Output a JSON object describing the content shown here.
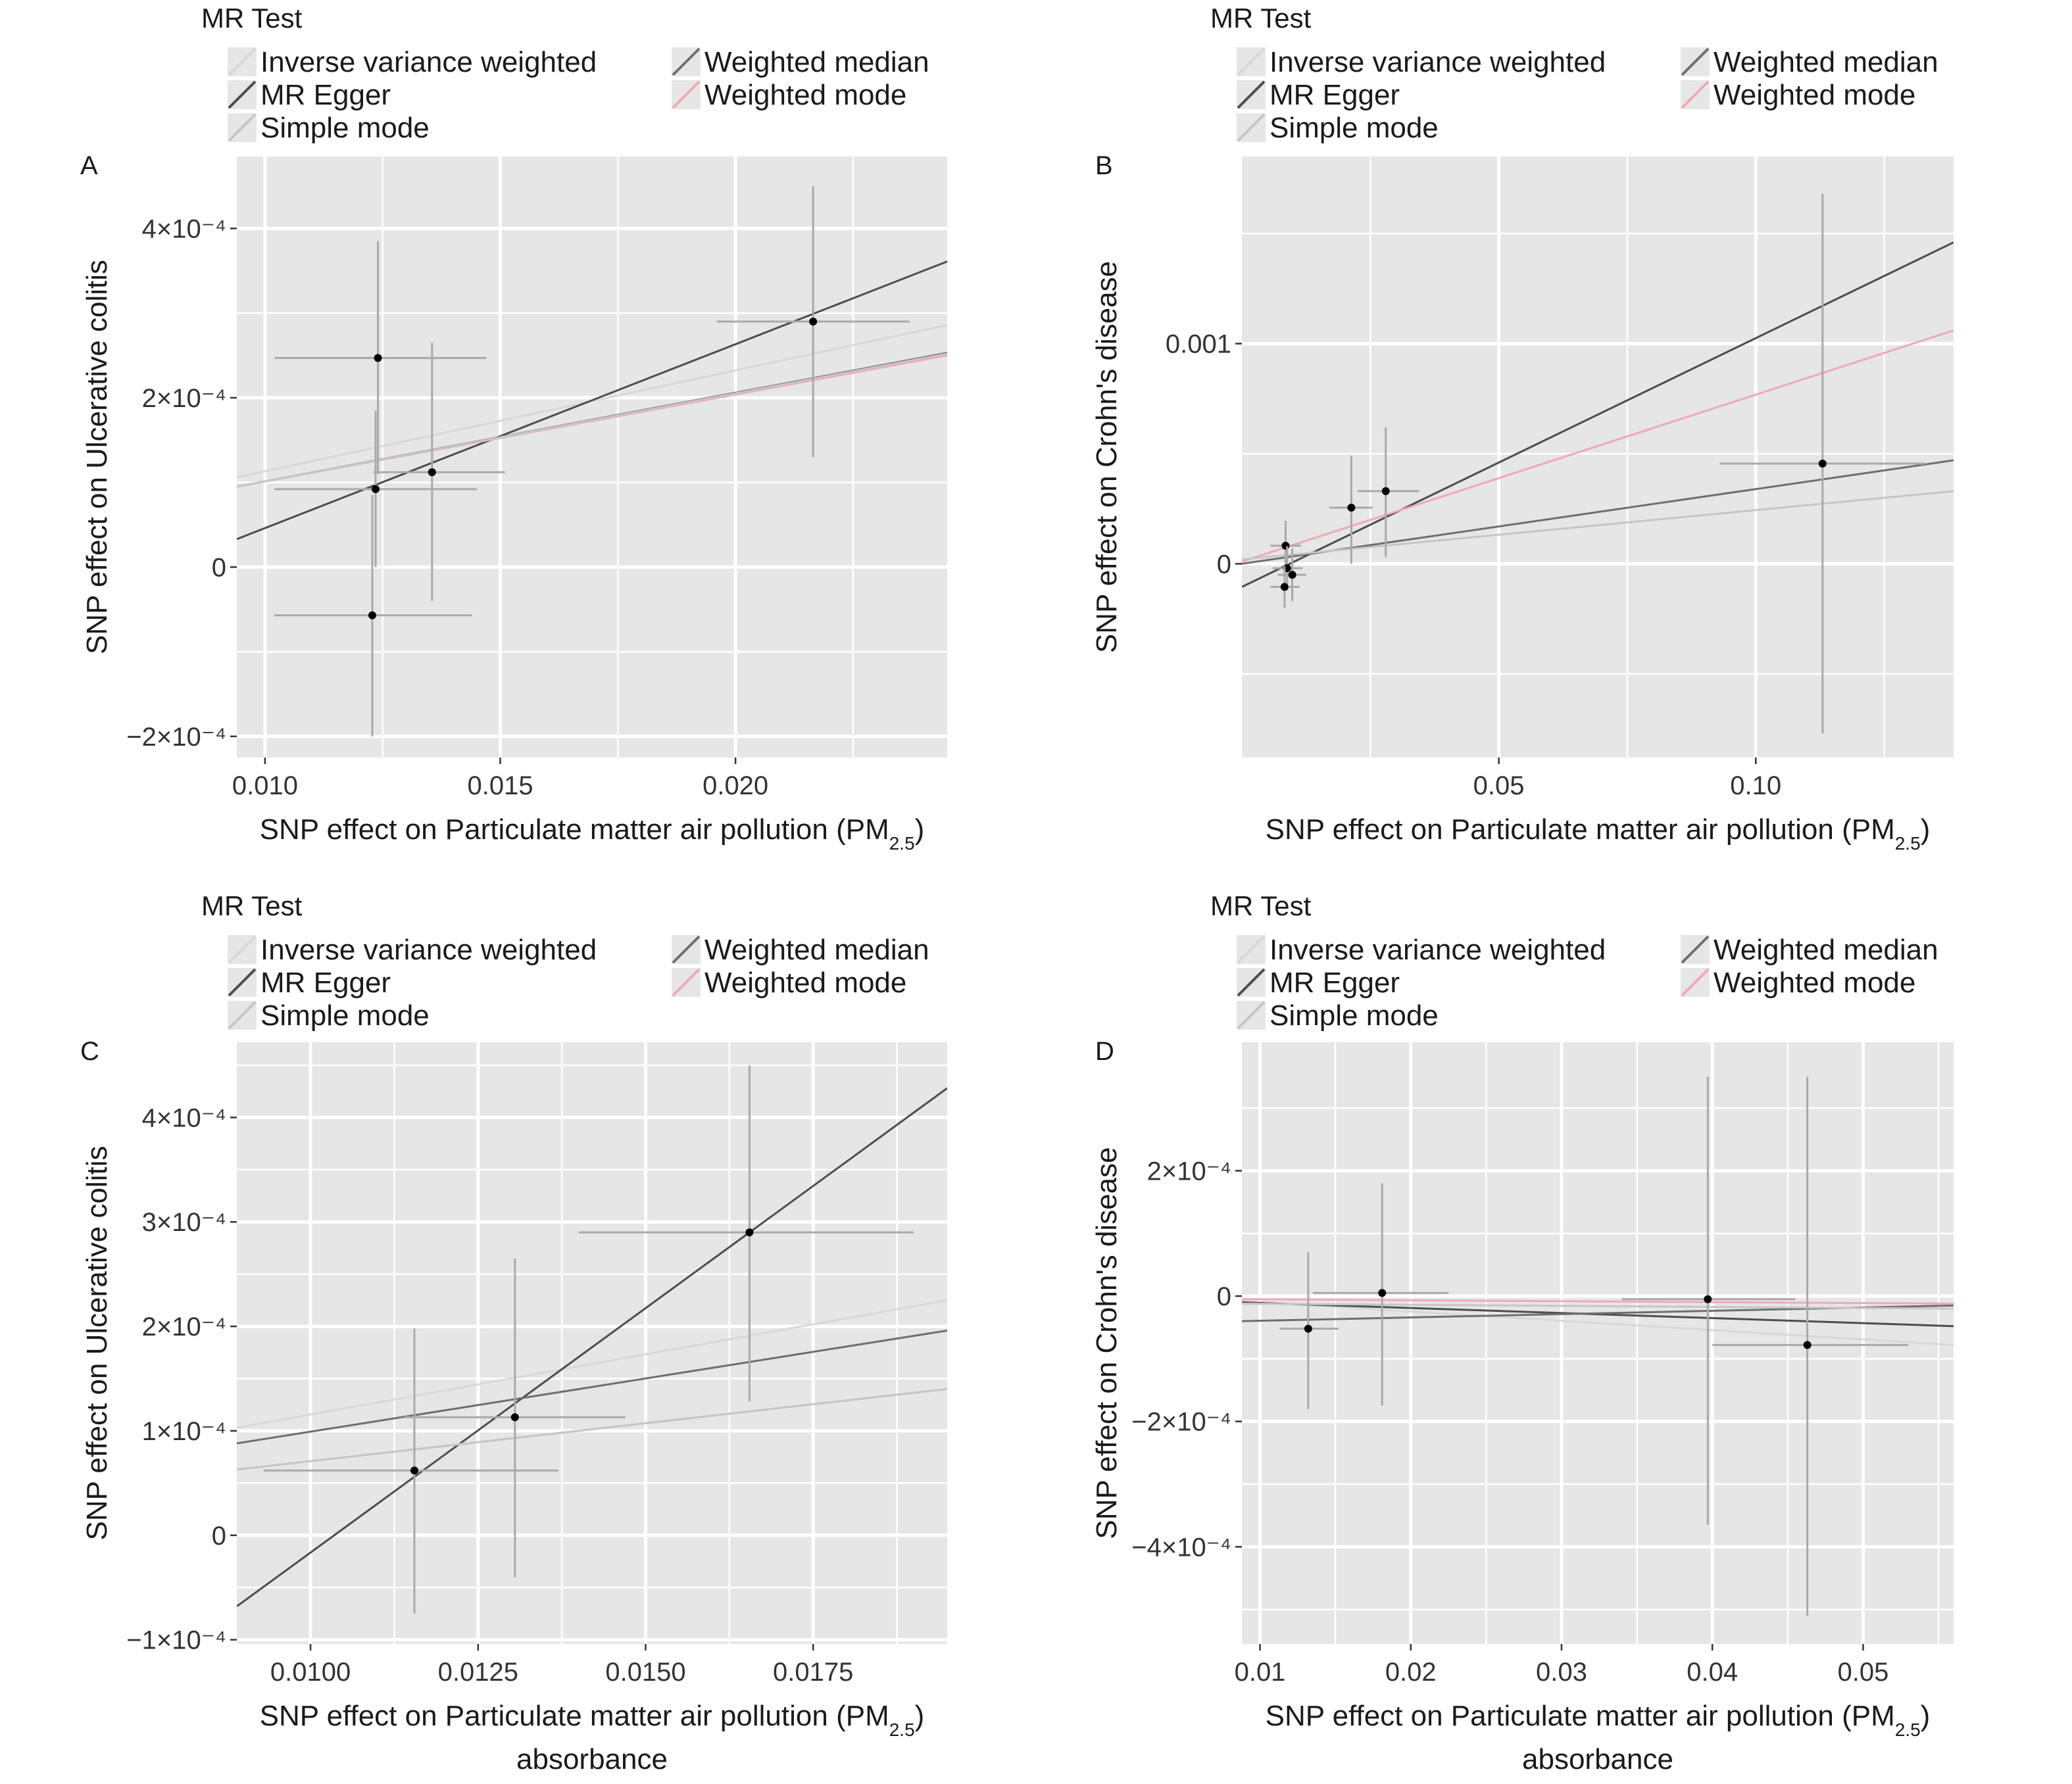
{
  "legend": {
    "title": "MR Test",
    "methods": [
      {
        "key": "ivw",
        "label": "Inverse variance weighted",
        "color": "#d8d8d8"
      },
      {
        "key": "wmed",
        "label": "Weighted median",
        "color": "#6e6e6e"
      },
      {
        "key": "egger",
        "label": "MR Egger",
        "color": "#4d4d4d"
      },
      {
        "key": "wmode",
        "label": "Weighted mode",
        "color": "#f2a8b6"
      },
      {
        "key": "smode",
        "label": "Simple mode",
        "color": "#c6c6c6"
      }
    ]
  },
  "chart_data": [
    {
      "type": "scatter",
      "panel": "A",
      "xlabel": "SNP effect on Particulate matter air pollution (PM",
      "xlabel_sub": "2.5",
      "xlabel_tail": ")",
      "xlabel_line2": "",
      "ylabel": "SNP effect on Ulcerative colitis",
      "xlim": [
        0.0094,
        0.0245
      ],
      "ylim": [
        -0.000225,
        0.000485
      ],
      "xticks": [
        0.01,
        0.015,
        0.02
      ],
      "xtick_labels": [
        "0.010",
        "0.015",
        "0.020"
      ],
      "yticks": [
        -0.0002,
        0,
        0.0002,
        0.0004
      ],
      "ytick_labels": [
        "−2×10⁻⁴",
        "0",
        "2×10⁻⁴",
        "4×10⁻⁴"
      ],
      "points": [
        {
          "x": 0.01235,
          "y": 9.2e-05,
          "xlo": 0.0102,
          "xhi": 0.0145,
          "ylo": 0.0,
          "yhi": 0.000185
        },
        {
          "x": 0.0124,
          "y": 0.000247,
          "xlo": 0.0102,
          "xhi": 0.0147,
          "ylo": 0.00011,
          "yhi": 0.000385
        },
        {
          "x": 0.01228,
          "y": -5.7e-05,
          "xlo": 0.0102,
          "xhi": 0.0144,
          "ylo": -0.0002,
          "yhi": 8.5e-05
        },
        {
          "x": 0.01355,
          "y": 0.000112,
          "xlo": 0.0123,
          "xhi": 0.0151,
          "ylo": -4e-05,
          "yhi": 0.000265
        },
        {
          "x": 0.02165,
          "y": 0.00029,
          "xlo": 0.0196,
          "xhi": 0.0237,
          "ylo": 0.00013,
          "yhi": 0.00045
        }
      ],
      "lines": [
        {
          "method": "ivw",
          "y0": 0.000106,
          "y1": 0.000286
        },
        {
          "method": "egger",
          "y0": 3.3e-05,
          "y1": 0.000361
        },
        {
          "method": "wmed",
          "y0": 9.5e-05,
          "y1": 0.000253
        },
        {
          "method": "wmode",
          "y0": 9.5e-05,
          "y1": 0.00025
        },
        {
          "method": "smode",
          "y0": 9.5e-05,
          "y1": 0.000252
        }
      ]
    },
    {
      "type": "scatter",
      "panel": "B",
      "xlabel": "SNP effect on Particulate matter air pollution (PM",
      "xlabel_sub": "2.5",
      "xlabel_tail": ")",
      "xlabel_line2": "",
      "ylabel": "SNP effect on Crohn's disease",
      "xlim": [
        0.0,
        0.1385
      ],
      "ylim": [
        -0.00088,
        0.00185
      ],
      "xticks": [
        0.05,
        0.1
      ],
      "xtick_labels": [
        "0.05",
        "0.10"
      ],
      "yticks": [
        0,
        0.001
      ],
      "ytick_labels": [
        "0",
        "0.001"
      ],
      "points": [
        {
          "x": 0.0085,
          "y": 8.2e-05,
          "xlo": 0.0055,
          "xhi": 0.0115,
          "ylo": -2e-05,
          "yhi": 0.000195
        },
        {
          "x": 0.0088,
          "y": -2e-05,
          "xlo": 0.006,
          "xhi": 0.0118,
          "ylo": -0.00012,
          "yhi": 8e-05
        },
        {
          "x": 0.0083,
          "y": -0.000105,
          "xlo": 0.0055,
          "xhi": 0.0112,
          "ylo": -0.0002,
          "yhi": -1e-05
        },
        {
          "x": 0.0098,
          "y": -5e-05,
          "xlo": 0.007,
          "xhi": 0.0125,
          "ylo": -0.00017,
          "yhi": 7e-05
        },
        {
          "x": 0.0213,
          "y": 0.000255,
          "xlo": 0.017,
          "xhi": 0.0255,
          "ylo": 0.0,
          "yhi": 0.00049
        },
        {
          "x": 0.028,
          "y": 0.00033,
          "xlo": 0.0225,
          "xhi": 0.0345,
          "ylo": 3e-05,
          "yhi": 0.00062
        },
        {
          "x": 0.113,
          "y": 0.000455,
          "xlo": 0.093,
          "xhi": 0.133,
          "ylo": -0.00077,
          "yhi": 0.00168
        }
      ],
      "lines": [
        {
          "method": "ivw",
          "y0": 1e-05,
          "y1": 0.00106
        },
        {
          "method": "egger",
          "y0": -0.000105,
          "y1": 0.00146
        },
        {
          "method": "wmed",
          "y0": 0.0,
          "y1": 0.00047
        },
        {
          "method": "wmode",
          "y0": 1e-05,
          "y1": 0.00106
        },
        {
          "method": "smode",
          "y0": 2e-05,
          "y1": 0.00033
        }
      ]
    },
    {
      "type": "scatter",
      "panel": "C",
      "xlabel": "SNP effect on Particulate matter air pollution (PM",
      "xlabel_sub": "2.5",
      "xlabel_tail": ")",
      "xlabel_line2": "absorbance",
      "ylabel": "SNP effect on Ulcerative colitis",
      "xlim": [
        0.0089,
        0.0195
      ],
      "ylim": [
        -0.000104,
        0.000472
      ],
      "xticks": [
        0.01,
        0.0125,
        0.015,
        0.0175
      ],
      "xtick_labels": [
        "0.0100",
        "0.0125",
        "0.0150",
        "0.0175"
      ],
      "yticks": [
        -0.0001,
        0,
        0.0001,
        0.0002,
        0.0003,
        0.0004
      ],
      "ytick_labels": [
        "−1×10⁻⁴",
        "0",
        "1×10⁻⁴",
        "2×10⁻⁴",
        "3×10⁻⁴",
        "4×10⁻⁴"
      ],
      "points": [
        {
          "x": 0.01155,
          "y": 6.2e-05,
          "xlo": 0.0093,
          "xhi": 0.0137,
          "ylo": -7.5e-05,
          "yhi": 0.000198
        },
        {
          "x": 0.01305,
          "y": 0.000113,
          "xlo": 0.0114,
          "xhi": 0.0147,
          "ylo": -4e-05,
          "yhi": 0.000265
        },
        {
          "x": 0.01655,
          "y": 0.00029,
          "xlo": 0.014,
          "xhi": 0.019,
          "ylo": 0.000128,
          "yhi": 0.00045
        }
      ],
      "lines": [
        {
          "method": "ivw",
          "y0": 0.000103,
          "y1": 0.000225
        },
        {
          "method": "egger",
          "y0": -6.8e-05,
          "y1": 0.000428
        },
        {
          "method": "wmed",
          "y0": 8.8e-05,
          "y1": 0.000196
        },
        {
          "method": "wmode",
          "y0": 6.3e-05,
          "y1": 0.00014
        },
        {
          "method": "smode",
          "y0": 6.3e-05,
          "y1": 0.00014
        }
      ]
    },
    {
      "type": "scatter",
      "panel": "D",
      "xlabel": "SNP effect on Particulate matter air pollution (PM",
      "xlabel_sub": "2.5",
      "xlabel_tail": ")",
      "xlabel_line2": "absorbance",
      "ylabel": "SNP effect on Crohn's disease",
      "xlim": [
        0.0088,
        0.056
      ],
      "ylim": [
        -0.000555,
        0.000405
      ],
      "xticks": [
        0.01,
        0.02,
        0.03,
        0.04,
        0.05
      ],
      "xtick_labels": [
        "0.01",
        "0.02",
        "0.03",
        "0.04",
        "0.05"
      ],
      "yticks": [
        -0.0004,
        -0.0002,
        0,
        0.0002
      ],
      "ytick_labels": [
        "−4×10⁻⁴",
        "−2×10⁻⁴",
        "0",
        "2×10⁻⁴"
      ],
      "points": [
        {
          "x": 0.0132,
          "y": -5.2e-05,
          "xlo": 0.0113,
          "xhi": 0.0152,
          "ylo": -0.00018,
          "yhi": 7e-05
        },
        {
          "x": 0.0181,
          "y": 5e-06,
          "xlo": 0.0135,
          "xhi": 0.0225,
          "ylo": -0.000175,
          "yhi": 0.00018
        },
        {
          "x": 0.0397,
          "y": -5e-06,
          "xlo": 0.034,
          "xhi": 0.0455,
          "ylo": -0.000365,
          "yhi": 0.00035
        },
        {
          "x": 0.0463,
          "y": -7.8e-05,
          "xlo": 0.04,
          "xhi": 0.053,
          "ylo": -0.00051,
          "yhi": 0.00035
        }
      ],
      "lines": [
        {
          "method": "ivw",
          "y0": -8e-06,
          "y1": -7.8e-05
        },
        {
          "method": "egger",
          "y0": -1e-05,
          "y1": -4.8e-05
        },
        {
          "method": "wmed",
          "y0": -4e-05,
          "y1": -1.5e-05
        },
        {
          "method": "wmode",
          "y0": -5e-06,
          "y1": -1.2e-05
        },
        {
          "method": "smode",
          "y0": -1.2e-05,
          "y1": -2e-05
        }
      ]
    }
  ]
}
